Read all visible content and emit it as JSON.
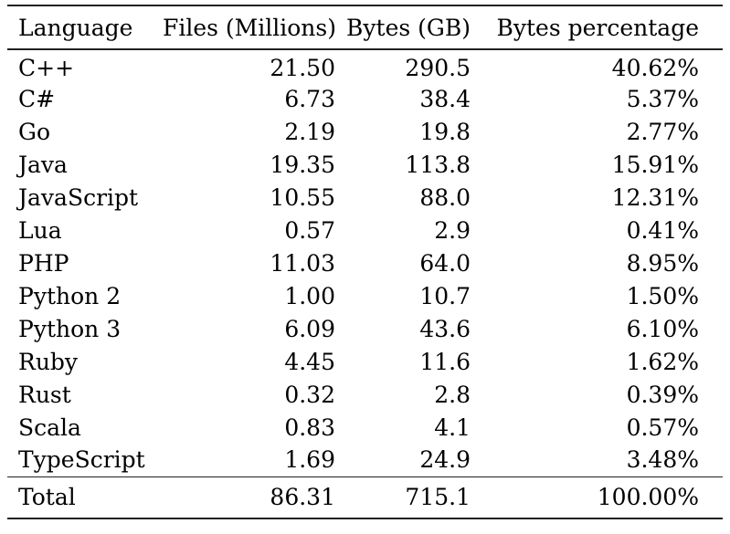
{
  "table": {
    "columns": [
      "Language",
      "Files (Millions)",
      "Bytes (GB)",
      "Bytes percentage"
    ],
    "rows": [
      [
        "C++",
        "21.50",
        "290.5",
        "40.62%"
      ],
      [
        "C#",
        "6.73",
        "38.4",
        "5.37%"
      ],
      [
        "Go",
        "2.19",
        "19.8",
        "2.77%"
      ],
      [
        "Java",
        "19.35",
        "113.8",
        "15.91%"
      ],
      [
        "JavaScript",
        "10.55",
        "88.0",
        "12.31%"
      ],
      [
        "Lua",
        "0.57",
        "2.9",
        "0.41%"
      ],
      [
        "PHP",
        "11.03",
        "64.0",
        "8.95%"
      ],
      [
        "Python 2",
        "1.00",
        "10.7",
        "1.50%"
      ],
      [
        "Python 3",
        "6.09",
        "43.6",
        "6.10%"
      ],
      [
        "Ruby",
        "4.45",
        "11.6",
        "1.62%"
      ],
      [
        "Rust",
        "0.32",
        "2.8",
        "0.39%"
      ],
      [
        "Scala",
        "0.83",
        "4.1",
        "0.57%"
      ],
      [
        "TypeScript",
        "1.69",
        "24.9",
        "3.48%"
      ]
    ],
    "total_row": [
      "Total",
      "86.31",
      "715.1",
      "100.00%"
    ]
  },
  "colors": {
    "background": "#ffffff",
    "text": "#000000",
    "rule": "#222222"
  }
}
